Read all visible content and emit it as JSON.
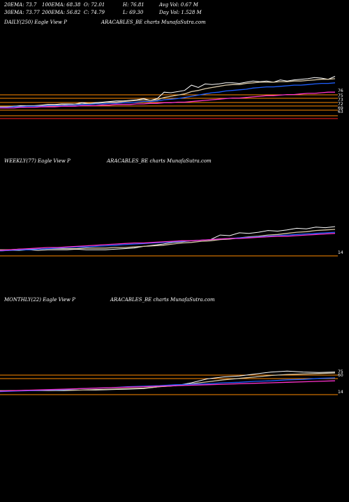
{
  "header": {
    "ema20": "20EMA: 73.7",
    "ema100": "100EMA: 68.38",
    "open": "O: 72.01",
    "high": "H: 76.81",
    "avg_vol": "Avg Vol: 0.67 M",
    "ema30": "30EMA: 73.77",
    "ema200": "200EMA: 56.82",
    "close": "C: 74.79",
    "low": "L: 69.30",
    "day_vol": "Day Vol: 1.528 M"
  },
  "colors": {
    "background": "#000000",
    "price": "#ffffff",
    "ema_fast": "#d9c9a8",
    "ema_mid": "#1e5fff",
    "ema_slow": "#6aa0ff",
    "ema_long": "#ff33cc",
    "level_line": "#ff8a00",
    "level_line_red": "#ff2020"
  },
  "chart_data": [
    {
      "type": "line",
      "title_left": "DAILY(250) Eagle  View  P",
      "title_right": "ARACABLES_BE charts MunafaSutra.com",
      "ylim": [
        0,
        100
      ],
      "ticks": [
        "76",
        "75",
        "73",
        "72",
        "69",
        "63"
      ],
      "levels": [
        76,
        75,
        73,
        72,
        69,
        63,
        60
      ],
      "series": [
        {
          "key": "price",
          "values": [
            20,
            20,
            21,
            22,
            22,
            22,
            23,
            24,
            24,
            25,
            25,
            25,
            27,
            26,
            27,
            28,
            29,
            30,
            30,
            31,
            32,
            34,
            31,
            34,
            45,
            44,
            46,
            48,
            57,
            53,
            59,
            58,
            59,
            61,
            61,
            60,
            62,
            64,
            63,
            64,
            62,
            66,
            64,
            66,
            67,
            68,
            70,
            69,
            67,
            72
          ]
        },
        {
          "key": "ema_fast",
          "values": [
            20,
            20,
            21,
            21,
            22,
            22,
            22,
            23,
            23,
            24,
            24,
            25,
            25,
            26,
            26,
            27,
            28,
            28,
            29,
            30,
            31,
            32,
            31,
            32,
            36,
            38,
            40,
            42,
            46,
            48,
            51,
            53,
            55,
            57,
            58,
            58,
            60,
            61,
            62,
            62,
            62,
            63,
            63,
            64,
            64,
            65,
            66,
            67,
            67,
            68
          ]
        },
        {
          "key": "ema_mid",
          "values": [
            19,
            19,
            20,
            20,
            21,
            21,
            21,
            22,
            22,
            22,
            23,
            23,
            24,
            24,
            25,
            25,
            26,
            26,
            27,
            27,
            28,
            29,
            29,
            30,
            32,
            33,
            34,
            36,
            38,
            40,
            42,
            44,
            45,
            47,
            48,
            49,
            50,
            52,
            53,
            54,
            54,
            55,
            56,
            57,
            57,
            58,
            59,
            60,
            60,
            61
          ]
        },
        {
          "key": "ema_long",
          "values": [
            18,
            18,
            18,
            19,
            19,
            19,
            20,
            20,
            20,
            21,
            21,
            21,
            22,
            22,
            22,
            23,
            23,
            24,
            24,
            24,
            25,
            25,
            26,
            26,
            27,
            27,
            28,
            28,
            29,
            30,
            31,
            32,
            33,
            34,
            35,
            35,
            36,
            37,
            38,
            39,
            39,
            40,
            41,
            41,
            42,
            43,
            43,
            44,
            45,
            45
          ]
        }
      ]
    },
    {
      "type": "line",
      "title_left": "WEEKLY(77) Eagle  View  P",
      "title_right": "ARACABLES_BE charts MunafaSutra.com",
      "ylim": [
        0,
        100
      ],
      "ticks": [
        "14"
      ],
      "levels": [
        14
      ],
      "series": [
        {
          "key": "price",
          "values": [
            10,
            11,
            11,
            12,
            11,
            12,
            12,
            12,
            13,
            12,
            12,
            12,
            13,
            14,
            15,
            18,
            20,
            22,
            25,
            26,
            28,
            29,
            30,
            38,
            37,
            42,
            41,
            43,
            46,
            45,
            47,
            50,
            49,
            52,
            51,
            53
          ]
        },
        {
          "key": "ema_fast",
          "values": [
            12,
            12,
            13,
            13,
            13,
            14,
            14,
            14,
            14,
            15,
            15,
            15,
            16,
            16,
            17,
            18,
            19,
            20,
            22,
            24,
            25,
            27,
            28,
            30,
            31,
            33,
            35,
            36,
            38,
            39,
            41,
            43,
            44,
            46,
            47,
            48
          ]
        },
        {
          "key": "ema_mid",
          "values": [
            10,
            11,
            12,
            12,
            13,
            14,
            15,
            16,
            17,
            17,
            18,
            19,
            20,
            21,
            22,
            23,
            24,
            25,
            26,
            27,
            28,
            29,
            30,
            31,
            32,
            33,
            34,
            35,
            36,
            37,
            38,
            39,
            40,
            41,
            42,
            43
          ]
        },
        {
          "key": "ema_long",
          "values": [
            11,
            12,
            13,
            14,
            15,
            16,
            16,
            17,
            18,
            19,
            20,
            21,
            22,
            23,
            24,
            24,
            25,
            26,
            27,
            28,
            28,
            29,
            30,
            31,
            32,
            32,
            33,
            34,
            35,
            36,
            36,
            37,
            38,
            39,
            40,
            41
          ]
        }
      ]
    },
    {
      "type": "line",
      "title_left": "MONTHLY(22) Eagle  View  P",
      "title_right": "ARACABLES_BE charts MunafaSutra.com",
      "ylim": [
        0,
        100
      ],
      "ticks": [
        "75",
        "60",
        "14"
      ],
      "levels": [
        75,
        60,
        14
      ],
      "series": [
        {
          "key": "price",
          "values": [
            14,
            14,
            15,
            14,
            14,
            15,
            15,
            16,
            17,
            18,
            22,
            24,
            30,
            38,
            42,
            44,
            48,
            52,
            54,
            52,
            51,
            52
          ]
        },
        {
          "key": "ema_fast",
          "values": [
            13,
            14,
            14,
            14,
            15,
            15,
            16,
            17,
            18,
            19,
            22,
            24,
            28,
            32,
            36,
            39,
            42,
            45,
            47,
            48,
            49,
            50
          ]
        },
        {
          "key": "ema_mid",
          "values": [
            12,
            13,
            14,
            15,
            16,
            18,
            19,
            20,
            22,
            23,
            24,
            26,
            27,
            28,
            30,
            31,
            33,
            34,
            36,
            37,
            39,
            40
          ]
        },
        {
          "key": "ema_long",
          "values": [
            13,
            14,
            15,
            16,
            17,
            18,
            19,
            20,
            21,
            22,
            23,
            24,
            25,
            26,
            27,
            28,
            29,
            30,
            31,
            32,
            33,
            34
          ]
        }
      ]
    }
  ]
}
